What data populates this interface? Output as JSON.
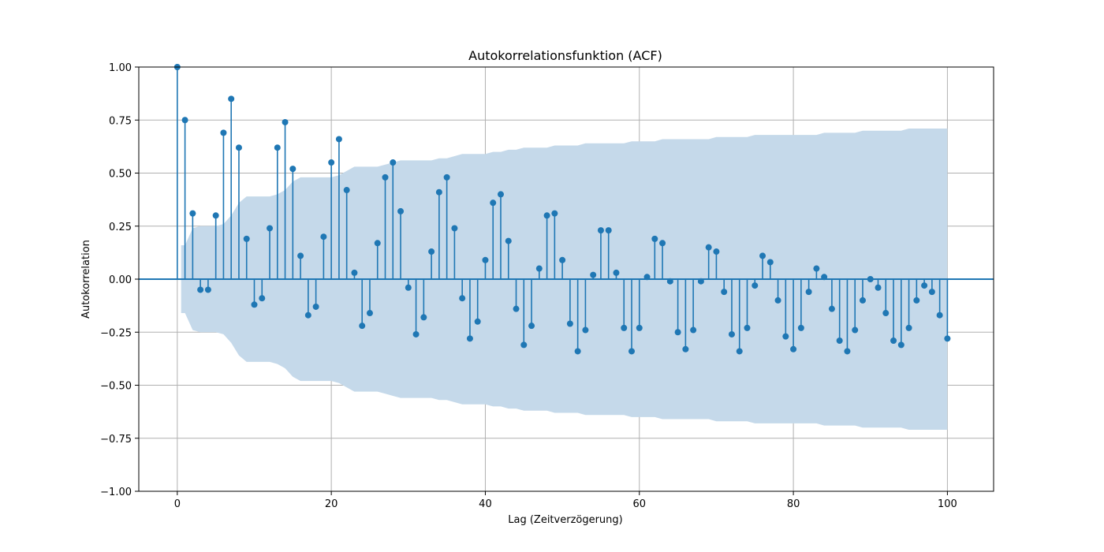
{
  "chart_data": {
    "type": "stem",
    "title": "Autokorrelationsfunktion (ACF)",
    "xlabel": "Lag (Zeitverzögerung)",
    "ylabel": "Autokorrelation",
    "xlim": [
      -5,
      106
    ],
    "ylim": [
      -1.0,
      1.0
    ],
    "xticks": [
      0,
      20,
      40,
      60,
      80,
      100
    ],
    "yticks": [
      -1.0,
      -0.75,
      -0.5,
      -0.25,
      0.0,
      0.25,
      0.5,
      0.75,
      1.0
    ],
    "ytick_labels": [
      "−1.00",
      "−0.75",
      "−0.50",
      "−0.25",
      "0.00",
      "0.25",
      "0.50",
      "0.75",
      "1.00"
    ],
    "xtick_labels": [
      "0",
      "20",
      "40",
      "60",
      "80",
      "100"
    ],
    "grid": true,
    "colors": {
      "stem": "#1f77b4",
      "band": "#c5d9ea",
      "grid": "#b0b0b0"
    },
    "lags": [
      0,
      1,
      2,
      3,
      4,
      5,
      6,
      7,
      8,
      9,
      10,
      11,
      12,
      13,
      14,
      15,
      16,
      17,
      18,
      19,
      20,
      21,
      22,
      23,
      24,
      25,
      26,
      27,
      28,
      29,
      30,
      31,
      32,
      33,
      34,
      35,
      36,
      37,
      38,
      39,
      40,
      41,
      42,
      43,
      44,
      45,
      46,
      47,
      48,
      49,
      50,
      51,
      52,
      53,
      54,
      55,
      56,
      57,
      58,
      59,
      60,
      61,
      62,
      63,
      64,
      65,
      66,
      67,
      68,
      69,
      70,
      71,
      72,
      73,
      74,
      75,
      76,
      77,
      78,
      79,
      80,
      81,
      82,
      83,
      84,
      85,
      86,
      87,
      88,
      89,
      90,
      91,
      92,
      93,
      94,
      95,
      96,
      97,
      98,
      99,
      100
    ],
    "values": [
      1.0,
      0.75,
      0.31,
      -0.05,
      -0.05,
      0.3,
      0.69,
      0.85,
      0.62,
      0.19,
      -0.12,
      -0.09,
      0.24,
      0.62,
      0.74,
      0.52,
      0.11,
      -0.17,
      -0.13,
      0.2,
      0.55,
      0.66,
      0.42,
      0.03,
      -0.22,
      -0.16,
      0.17,
      0.48,
      0.55,
      0.32,
      -0.04,
      -0.26,
      -0.18,
      0.13,
      0.41,
      0.48,
      0.24,
      -0.09,
      -0.28,
      -0.2,
      0.09,
      0.36,
      0.4,
      0.18,
      -0.14,
      -0.31,
      -0.22,
      0.05,
      0.3,
      0.31,
      0.09,
      -0.21,
      -0.34,
      -0.24,
      0.02,
      0.23,
      0.23,
      0.03,
      -0.23,
      -0.34,
      -0.23,
      0.01,
      0.19,
      0.17,
      -0.01,
      -0.25,
      -0.33,
      -0.24,
      -0.01,
      0.15,
      0.13,
      -0.06,
      -0.26,
      -0.34,
      -0.23,
      -0.03,
      0.11,
      0.08,
      -0.1,
      -0.27,
      -0.33,
      -0.23,
      -0.06,
      0.05,
      0.01,
      -0.14,
      -0.29,
      -0.34,
      -0.24,
      -0.1,
      0.0,
      -0.04,
      -0.16,
      -0.29,
      -0.31,
      -0.23,
      -0.1,
      -0.03,
      -0.06,
      -0.17,
      -0.28
    ],
    "confidence_band": [
      0.0,
      0.16,
      0.24,
      0.25,
      0.25,
      0.25,
      0.26,
      0.3,
      0.36,
      0.39,
      0.39,
      0.39,
      0.39,
      0.4,
      0.42,
      0.46,
      0.48,
      0.48,
      0.48,
      0.48,
      0.48,
      0.49,
      0.51,
      0.53,
      0.53,
      0.53,
      0.53,
      0.54,
      0.55,
      0.56,
      0.56,
      0.56,
      0.56,
      0.56,
      0.57,
      0.57,
      0.58,
      0.59,
      0.59,
      0.59,
      0.59,
      0.6,
      0.6,
      0.61,
      0.61,
      0.62,
      0.62,
      0.62,
      0.62,
      0.63,
      0.63,
      0.63,
      0.63,
      0.64,
      0.64,
      0.64,
      0.64,
      0.64,
      0.64,
      0.65,
      0.65,
      0.65,
      0.65,
      0.66,
      0.66,
      0.66,
      0.66,
      0.66,
      0.66,
      0.66,
      0.67,
      0.67,
      0.67,
      0.67,
      0.67,
      0.68,
      0.68,
      0.68,
      0.68,
      0.68,
      0.68,
      0.68,
      0.68,
      0.68,
      0.69,
      0.69,
      0.69,
      0.69,
      0.69,
      0.7,
      0.7,
      0.7,
      0.7,
      0.7,
      0.7,
      0.71,
      0.71,
      0.71,
      0.71,
      0.71,
      0.71
    ]
  }
}
